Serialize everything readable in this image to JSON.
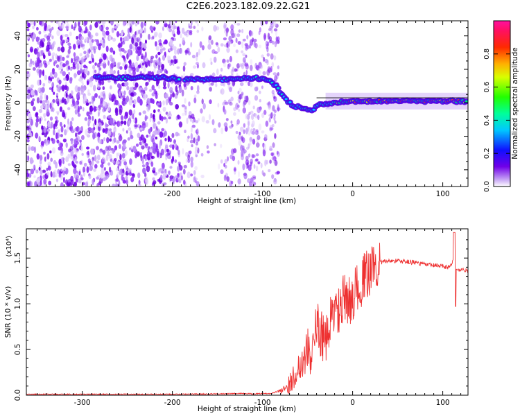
{
  "title": "C2E6.2023.182.09.22.G21",
  "chart_data": [
    {
      "type": "heatmap",
      "xlabel": "Height of straight line (km)",
      "ylabel": "Frequency (Hz)",
      "xlim": [
        -362,
        128
      ],
      "ylim": [
        -50,
        49
      ],
      "x_ticks": [
        -300,
        -200,
        -100,
        0,
        100
      ],
      "y_ticks": [
        -40,
        -20,
        0,
        20,
        40
      ],
      "colorbar": {
        "label": "Normalized spectral amplitude",
        "range": [
          0.0,
          1.0
        ],
        "ticks": [
          "0.0",
          "0.2",
          "0.4",
          "0.6",
          "0.8"
        ],
        "colormap": "rainbow (purple-blue-cyan-green-yellow-orange-red-pink)"
      },
      "noise_region_x": [
        -362,
        -88
      ],
      "signal_track": {
        "x": [
          -285,
          -270,
          -250,
          -230,
          -210,
          -190,
          -170,
          -150,
          -130,
          -110,
          -95,
          -85,
          -75,
          -65,
          -55,
          -45,
          -35,
          -20,
          0,
          20,
          50,
          80,
          100,
          120
        ],
        "frequency": [
          15,
          15,
          15,
          15,
          15,
          14,
          14,
          14,
          14,
          15,
          14,
          10,
          2,
          -2,
          -3,
          -4,
          -1,
          0,
          1,
          1,
          1,
          1,
          1,
          1
        ]
      },
      "reference_line_frequency": 3
    },
    {
      "type": "line",
      "xlabel": "Height of straight line (km)",
      "ylabel": "SNR (10 * v/v)",
      "y_multiplier": "(x10⁴)",
      "xlim": [
        -362,
        128
      ],
      "ylim": [
        0,
        1.82
      ],
      "x_ticks": [
        -300,
        -200,
        -100,
        0,
        100
      ],
      "y_ticks": [
        0.0,
        0.5,
        1.0,
        1.5
      ],
      "series": [
        {
          "color": "#ee3030",
          "x": [
            -362,
            -300,
            -250,
            -200,
            -150,
            -130,
            -110,
            -90,
            -80,
            -70,
            -60,
            -50,
            -45,
            -40,
            -35,
            -30,
            -25,
            -20,
            -15,
            -10,
            -5,
            0,
            5,
            10,
            15,
            20,
            25,
            30,
            40,
            50,
            60,
            70,
            80,
            90,
            100,
            105,
            110,
            113,
            115,
            120,
            128
          ],
          "y": [
            0.01,
            0.01,
            0.01,
            0.01,
            0.015,
            0.02,
            0.015,
            0.02,
            0.05,
            0.12,
            0.3,
            0.5,
            0.45,
            0.75,
            0.7,
            0.55,
            0.8,
            0.95,
            0.9,
            1.05,
            1.0,
            1.1,
            1.15,
            1.25,
            1.3,
            1.38,
            1.43,
            1.45,
            1.47,
            1.47,
            1.46,
            1.45,
            1.43,
            1.42,
            1.41,
            1.4,
            1.42,
            1.6,
            1.38,
            1.37,
            1.36
          ]
        }
      ]
    }
  ]
}
